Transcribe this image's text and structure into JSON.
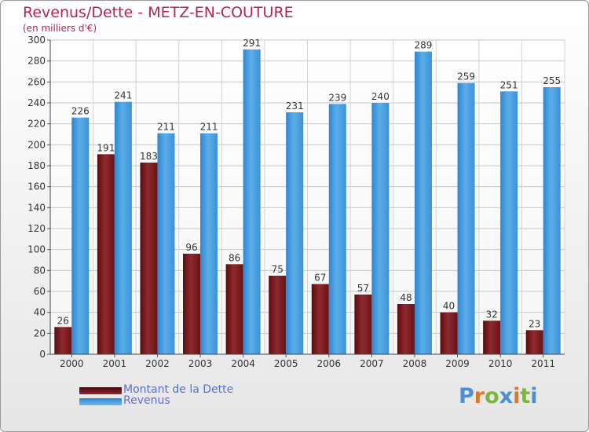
{
  "title": "Revenus/Dette - METZ-EN-COUTURE",
  "subtitle": "(en milliers d'€)",
  "logo_text": "Proxiti",
  "colors": {
    "dette": "#7a1a1c",
    "revenus": "#4ea0e0",
    "title": "#b3245a",
    "legend_text": "#5a6fd6"
  },
  "chart_data": {
    "type": "bar",
    "title": "Revenus/Dette - METZ-EN-COUTURE",
    "ylabel": "(en milliers d'€)",
    "xlabel": "",
    "categories": [
      "2000",
      "2001",
      "2002",
      "2003",
      "2004",
      "2005",
      "2006",
      "2007",
      "2008",
      "2009",
      "2010",
      "2011"
    ],
    "series": [
      {
        "name": "Montant de la Dette",
        "values": [
          26,
          191,
          183,
          96,
          86,
          75,
          67,
          57,
          48,
          40,
          32,
          23
        ]
      },
      {
        "name": "Revenus",
        "values": [
          226,
          241,
          211,
          211,
          291,
          231,
          239,
          240,
          289,
          259,
          251,
          255
        ]
      }
    ],
    "ylim": [
      0,
      300
    ],
    "yticks": [
      0,
      20,
      40,
      60,
      80,
      100,
      120,
      140,
      160,
      180,
      200,
      220,
      240,
      260,
      280,
      300
    ],
    "grid": true,
    "legend_position": "bottom-left"
  }
}
